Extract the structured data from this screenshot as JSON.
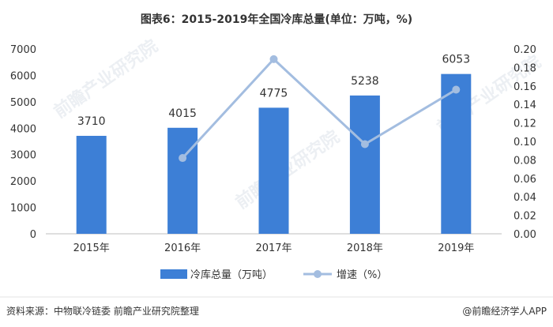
{
  "chart_data": {
    "type": "bar",
    "title": "图表6：2015-2019年全国冷库总量(单位：万吨，%)",
    "categories": [
      "2015年",
      "2016年",
      "2017年",
      "2018年",
      "2019年"
    ],
    "series": [
      {
        "name": "冷库总量（万吨）",
        "type": "bar",
        "axis": "left",
        "color": "#3d7fd6",
        "values": [
          3710,
          4015,
          4775,
          5238,
          6053
        ],
        "labels": [
          "3710",
          "4015",
          "4775",
          "5238",
          "6053"
        ]
      },
      {
        "name": "增速（%）",
        "type": "line",
        "axis": "right",
        "color": "#a3bde0",
        "values": [
          null,
          0.082,
          0.189,
          0.097,
          0.156
        ]
      }
    ],
    "y_left": {
      "range": [
        0,
        7000
      ],
      "ticks": [
        "0",
        "1000",
        "2000",
        "3000",
        "4000",
        "5000",
        "6000",
        "7000"
      ]
    },
    "y_right": {
      "range": [
        0,
        0.2
      ],
      "ticks": [
        "0.00",
        "0.02",
        "0.04",
        "0.06",
        "0.08",
        "0.10",
        "0.12",
        "0.14",
        "0.16",
        "0.18",
        "0.20"
      ]
    },
    "grid": false,
    "legend": "bottom-center"
  },
  "footer": {
    "source": "资料来源：中物联冷链委 前瞻产业研究院整理",
    "brand": "@前瞻经济学人APP"
  },
  "watermark": "前瞻产业研究院"
}
